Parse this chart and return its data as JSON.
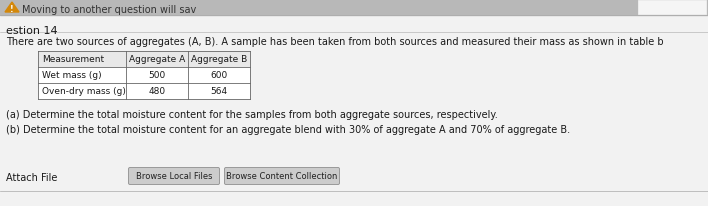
{
  "bg_color": "#d4d4d4",
  "content_bg": "#f0f0f0",
  "top_bar_color": "#b8b8b8",
  "top_text": "Moving to another question will sav",
  "warning_icon_color": "#d4880a",
  "question_label": "estion 14",
  "intro_text": "There are two sources of aggregates (A, B). A sample has been taken from both sources and measured their mass as shown in table b",
  "table_headers": [
    "Measurement",
    "Aggregate A",
    "Aggregate B"
  ],
  "table_rows": [
    [
      "Wet mass (g)",
      "500",
      "600"
    ],
    [
      "Oven-dry mass (g)",
      "480",
      "564"
    ]
  ],
  "part_a": "(a) Determine the total moisture content for the samples from both aggregate sources, respectively.",
  "part_b": "(b) Determine the total moisture content for an aggregate blend with 30% of aggregate A and 70% of aggregate B.",
  "attach_label": "Attach File",
  "btn1_text": "Browse Local Files",
  "btn2_text": "Browse Content Collection",
  "top_right_box_color": "#ffffff",
  "table_border_color": "#666666",
  "text_color": "#1a1a1a",
  "separator_color": "#aaaaaa",
  "btn_color": "#cccccc",
  "btn_border_color": "#999999"
}
